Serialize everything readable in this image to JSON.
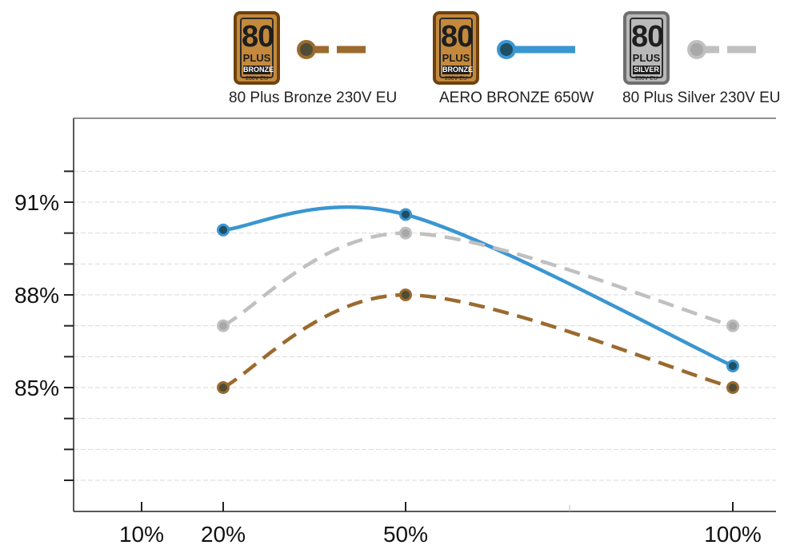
{
  "legend": [
    {
      "badge_number": "80",
      "badge_plus": "PLUS",
      "badge_tier": "BRONZE",
      "badge_volt": "230V EU",
      "badge_style": "bronze",
      "label": "80 Plus Bronze 230V EU",
      "line_color": "#9b6a2e",
      "marker_fill": "#4d4d38",
      "dashed": true
    },
    {
      "badge_number": "80",
      "badge_plus": "PLUS",
      "badge_tier": "BRONZE",
      "badge_volt": "230V EU",
      "badge_style": "bronze",
      "label": "AERO BRONZE 650W",
      "line_color": "#3a96d2",
      "marker_fill": "#1f4f63",
      "dashed": false
    },
    {
      "badge_number": "80",
      "badge_plus": "PLUS",
      "badge_tier": "SILVER",
      "badge_volt": "230V EU",
      "badge_style": "silver",
      "label": "80 Plus Silver 230V EU",
      "line_color": "#c0c0c0",
      "marker_fill": "#a8a8a8",
      "dashed": true
    }
  ],
  "chart_data": {
    "type": "line",
    "x_tick_labels": [
      "10%",
      "20%",
      "50%",
      "100%"
    ],
    "x_ticks": [
      10,
      20,
      50,
      100
    ],
    "y_tick_labels": [
      "91%",
      "88%",
      "85%"
    ],
    "y_ticks": [
      91,
      88,
      85
    ],
    "ylim": [
      81,
      92
    ],
    "grid": true,
    "legend_position": "top",
    "series": [
      {
        "name": "80 Plus Bronze 230V EU",
        "x": [
          20,
          50,
          100
        ],
        "y": [
          85,
          88,
          85
        ]
      },
      {
        "name": "AERO BRONZE 650W",
        "x": [
          20,
          50,
          100
        ],
        "y": [
          90.1,
          90.6,
          85.7
        ]
      },
      {
        "name": "80 Plus Silver 230V EU",
        "x": [
          20,
          50,
          100
        ],
        "y": [
          87,
          90,
          87
        ]
      }
    ]
  }
}
